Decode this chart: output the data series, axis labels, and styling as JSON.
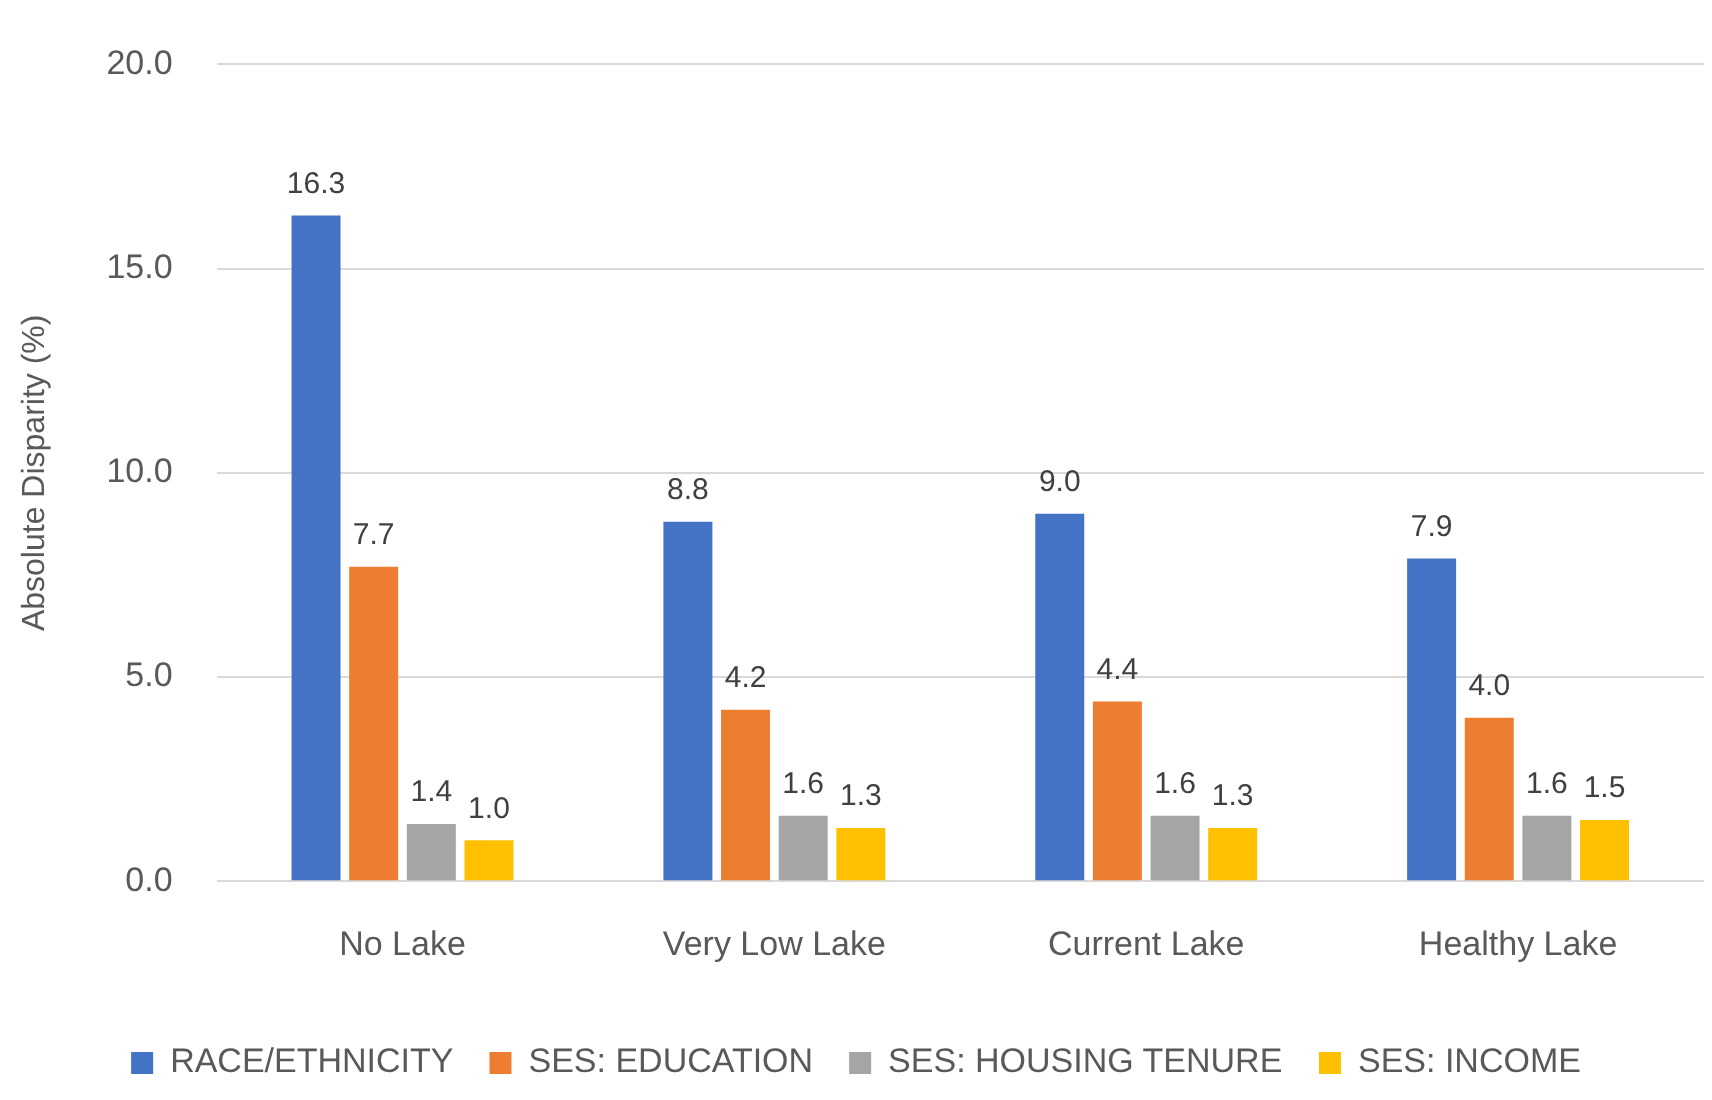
{
  "chart_data": {
    "type": "bar",
    "ylabel": "Absolute Disparity (%)",
    "categories": [
      "No Lake",
      "Very Low Lake",
      "Current Lake",
      "Healthy Lake"
    ],
    "series": [
      {
        "name": "RACE/ETHNICITY",
        "color": "#4472c4",
        "values": [
          16.3,
          8.8,
          9.0,
          7.9
        ],
        "value_labels": [
          "16.3",
          "8.8",
          "9.0",
          "7.9"
        ]
      },
      {
        "name": "SES: EDUCATION",
        "color": "#ed7d31",
        "values": [
          7.7,
          4.2,
          4.4,
          4.0
        ],
        "value_labels": [
          "7.7",
          "4.2",
          "4.4",
          "4.0"
        ]
      },
      {
        "name": "SES: HOUSING TENURE",
        "color": "#a5a5a5",
        "values": [
          1.4,
          1.6,
          1.6,
          1.6
        ],
        "value_labels": [
          "1.4",
          "1.6",
          "1.6",
          "1.6"
        ]
      },
      {
        "name": "SES: INCOME",
        "color": "#ffc000",
        "values": [
          1.0,
          1.3,
          1.3,
          1.5
        ],
        "value_labels": [
          "1.0",
          "1.3",
          "1.3",
          "1.5"
        ]
      }
    ],
    "ylim": [
      0,
      20
    ],
    "yticks": [
      {
        "value": 0,
        "label": "0.0"
      },
      {
        "value": 5,
        "label": "5.0"
      },
      {
        "value": 10,
        "label": "10.0"
      },
      {
        "value": 15,
        "label": "15.0"
      },
      {
        "value": 20,
        "label": "20.0"
      }
    ],
    "grid": "y",
    "legend": "bottom"
  }
}
